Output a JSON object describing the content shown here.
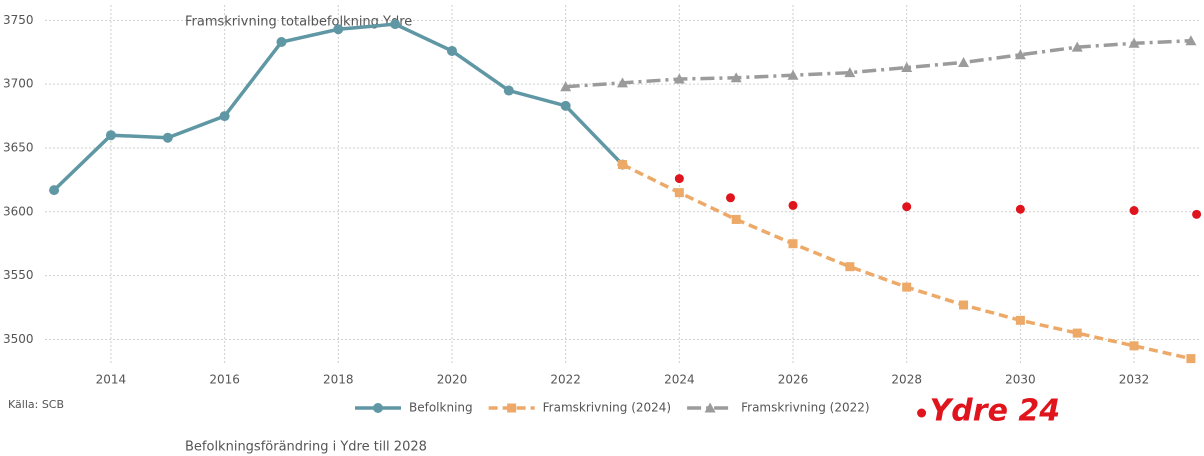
{
  "chart_data": {
    "type": "line",
    "title": "Framskrivning  totalbefolkning Ydre",
    "source": "Källa: SCB",
    "footer": "Befolkningsförändring i Ydre till 2028",
    "xlim": [
      2012.84,
      2033.16
    ],
    "ylim": [
      3480,
      3762
    ],
    "xticks": [
      2014,
      2016,
      2018,
      2020,
      2022,
      2024,
      2026,
      2028,
      2030,
      2032
    ],
    "yticks": [
      3500,
      3550,
      3600,
      3650,
      3700,
      3750
    ],
    "grid": true,
    "legend": "bottom",
    "series": [
      {
        "name": "Befolkning",
        "color": "#5f97a4",
        "marker": "circle",
        "dash": "solid",
        "x": [
          2013,
          2014,
          2015,
          2016,
          2017,
          2018,
          2019,
          2020,
          2021,
          2022,
          2023
        ],
        "values": [
          3617,
          3660,
          3658,
          3675,
          3733,
          3743,
          3747,
          3726,
          3695,
          3683,
          3637
        ]
      },
      {
        "name": "Framskrivning (2024)",
        "color": "#eda968",
        "marker": "square",
        "dash": "dashed",
        "x": [
          2023,
          2024,
          2025,
          2026,
          2027,
          2028,
          2029,
          2030,
          2031,
          2032,
          2033
        ],
        "values": [
          3637,
          3615,
          3594,
          3575,
          3557,
          3541,
          3527,
          3515,
          3505,
          3495,
          3485
        ]
      },
      {
        "name": "Framskrivning (2022)",
        "color": "#9b9b9b",
        "marker": "triangle",
        "dash": "dashdot",
        "x": [
          2022,
          2023,
          2024,
          2025,
          2026,
          2027,
          2028,
          2029,
          2030,
          2031,
          2032,
          2033
        ],
        "values": [
          3698,
          3701,
          3704,
          3705,
          3707,
          3709,
          3713,
          3717,
          3723,
          3729,
          3732,
          3734
        ]
      },
      {
        "name": "Ydre 24",
        "color": "#e0141c",
        "marker": "dot",
        "dash": "none",
        "x": [
          2024,
          2024.9,
          2026,
          2028,
          2030,
          2032,
          2033.1
        ],
        "values": [
          3626,
          3611,
          3605,
          3604,
          3602,
          3601,
          3598
        ]
      }
    ]
  }
}
